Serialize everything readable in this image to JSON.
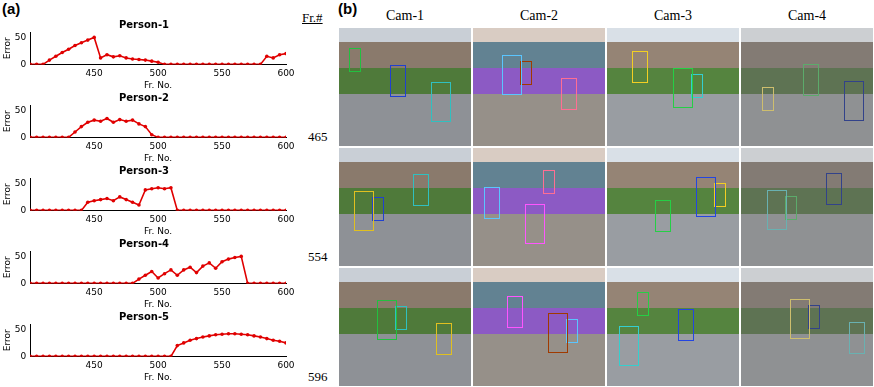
{
  "panel_labels": [
    "(a)",
    "(b)"
  ],
  "chart_data": [
    {
      "type": "line",
      "title": "Person-1",
      "x_label": "Fr. No.",
      "y_label": "Error",
      "x": [
        400,
        405,
        410,
        415,
        420,
        425,
        430,
        435,
        440,
        445,
        450,
        455,
        460,
        465,
        470,
        475,
        480,
        485,
        490,
        495,
        500,
        505,
        510,
        515,
        520,
        525,
        530,
        535,
        540,
        545,
        550,
        555,
        560,
        565,
        570,
        575,
        580,
        585,
        590,
        595,
        600
      ],
      "values": [
        0,
        0,
        0,
        8,
        15,
        22,
        28,
        35,
        40,
        45,
        50,
        12,
        18,
        14,
        16,
        12,
        10,
        9,
        8,
        6,
        4,
        0,
        0,
        0,
        0,
        0,
        0,
        0,
        0,
        0,
        0,
        0,
        0,
        0,
        0,
        0,
        0,
        15,
        12,
        18,
        20
      ],
      "color": "#e00000",
      "marker": "circle",
      "xlim": [
        400,
        600
      ],
      "xticks": [
        450,
        500,
        550,
        600
      ],
      "ylim": [
        0,
        60
      ],
      "yticks": [
        0,
        50
      ],
      "grid": false
    },
    {
      "type": "line",
      "title": "Person-2",
      "x_label": "Fr. No.",
      "y_label": "Error",
      "x": [
        400,
        405,
        410,
        415,
        420,
        425,
        430,
        435,
        440,
        445,
        450,
        455,
        460,
        465,
        470,
        475,
        480,
        485,
        490,
        495,
        500,
        505,
        510,
        515,
        520,
        525,
        530,
        535,
        540,
        545,
        550,
        555,
        560,
        565,
        570,
        575,
        580,
        585,
        590,
        595,
        600
      ],
      "values": [
        0,
        0,
        0,
        0,
        0,
        0,
        0,
        10,
        20,
        28,
        32,
        30,
        35,
        28,
        33,
        30,
        32,
        25,
        20,
        5,
        0,
        0,
        0,
        0,
        0,
        0,
        0,
        0,
        0,
        0,
        0,
        0,
        0,
        0,
        0,
        0,
        0,
        0,
        0,
        0,
        0
      ],
      "color": "#e00000",
      "marker": "circle",
      "xlim": [
        400,
        600
      ],
      "xticks": [
        450,
        500,
        550,
        600
      ],
      "ylim": [
        0,
        60
      ],
      "yticks": [
        0,
        50
      ],
      "grid": false
    },
    {
      "type": "line",
      "title": "Person-3",
      "x_label": "Fr. No.",
      "y_label": "Error",
      "x": [
        400,
        405,
        410,
        415,
        420,
        425,
        430,
        435,
        440,
        445,
        450,
        455,
        460,
        465,
        470,
        475,
        480,
        485,
        490,
        495,
        500,
        505,
        510,
        515,
        520,
        525,
        530,
        535,
        540,
        545,
        550,
        555,
        560,
        565,
        570,
        575,
        580,
        585,
        590,
        595,
        600
      ],
      "values": [
        0,
        0,
        0,
        0,
        0,
        0,
        0,
        0,
        0,
        15,
        18,
        20,
        22,
        18,
        25,
        20,
        15,
        10,
        38,
        40,
        42,
        40,
        42,
        0,
        0,
        0,
        0,
        0,
        0,
        0,
        0,
        0,
        0,
        0,
        0,
        0,
        0,
        0,
        0,
        0,
        0
      ],
      "color": "#e00000",
      "marker": "circle",
      "xlim": [
        400,
        600
      ],
      "xticks": [
        450,
        500,
        550,
        600
      ],
      "ylim": [
        0,
        60
      ],
      "yticks": [
        0,
        50
      ],
      "grid": false
    },
    {
      "type": "line",
      "title": "Person-4",
      "x_label": "Fr. No.",
      "y_label": "Error",
      "x": [
        400,
        405,
        410,
        415,
        420,
        425,
        430,
        435,
        440,
        445,
        450,
        455,
        460,
        465,
        470,
        475,
        480,
        485,
        490,
        495,
        500,
        505,
        510,
        515,
        520,
        525,
        530,
        535,
        540,
        545,
        550,
        555,
        560,
        565,
        570,
        575,
        580,
        585,
        590,
        595,
        600
      ],
      "values": [
        0,
        0,
        0,
        0,
        0,
        0,
        0,
        0,
        0,
        0,
        0,
        0,
        0,
        0,
        0,
        0,
        0,
        8,
        15,
        22,
        10,
        18,
        25,
        15,
        25,
        30,
        20,
        32,
        38,
        28,
        40,
        45,
        48,
        50,
        0,
        0,
        0,
        0,
        0,
        0,
        0
      ],
      "color": "#e00000",
      "marker": "circle",
      "xlim": [
        400,
        600
      ],
      "xticks": [
        450,
        500,
        550,
        600
      ],
      "ylim": [
        0,
        60
      ],
      "yticks": [
        0,
        50
      ],
      "grid": false
    },
    {
      "type": "line",
      "title": "Person-5",
      "x_label": "Fr. No.",
      "y_label": "Error",
      "x": [
        400,
        405,
        410,
        415,
        420,
        425,
        430,
        435,
        440,
        445,
        450,
        455,
        460,
        465,
        470,
        475,
        480,
        485,
        490,
        495,
        500,
        505,
        510,
        515,
        520,
        525,
        530,
        535,
        540,
        545,
        550,
        555,
        560,
        565,
        570,
        575,
        580,
        585,
        590,
        595,
        600
      ],
      "values": [
        0,
        0,
        0,
        0,
        0,
        0,
        0,
        0,
        0,
        0,
        0,
        0,
        0,
        0,
        0,
        0,
        0,
        0,
        0,
        0,
        0,
        0,
        0,
        20,
        25,
        30,
        33,
        36,
        38,
        40,
        41,
        42,
        42,
        41,
        40,
        38,
        36,
        33,
        30,
        28,
        25
      ],
      "color": "#e00000",
      "marker": "circle",
      "xlim": [
        400,
        600
      ],
      "xticks": [
        450,
        500,
        550,
        600
      ],
      "ylim": [
        0,
        60
      ],
      "yticks": [
        0,
        50
      ],
      "grid": false
    }
  ],
  "image_grid": {
    "row_header": "Fr.#",
    "columns": [
      "Cam-1",
      "Cam-2",
      "Cam-3",
      "Cam-4"
    ],
    "rows": [
      "465",
      "554",
      "596"
    ]
  }
}
